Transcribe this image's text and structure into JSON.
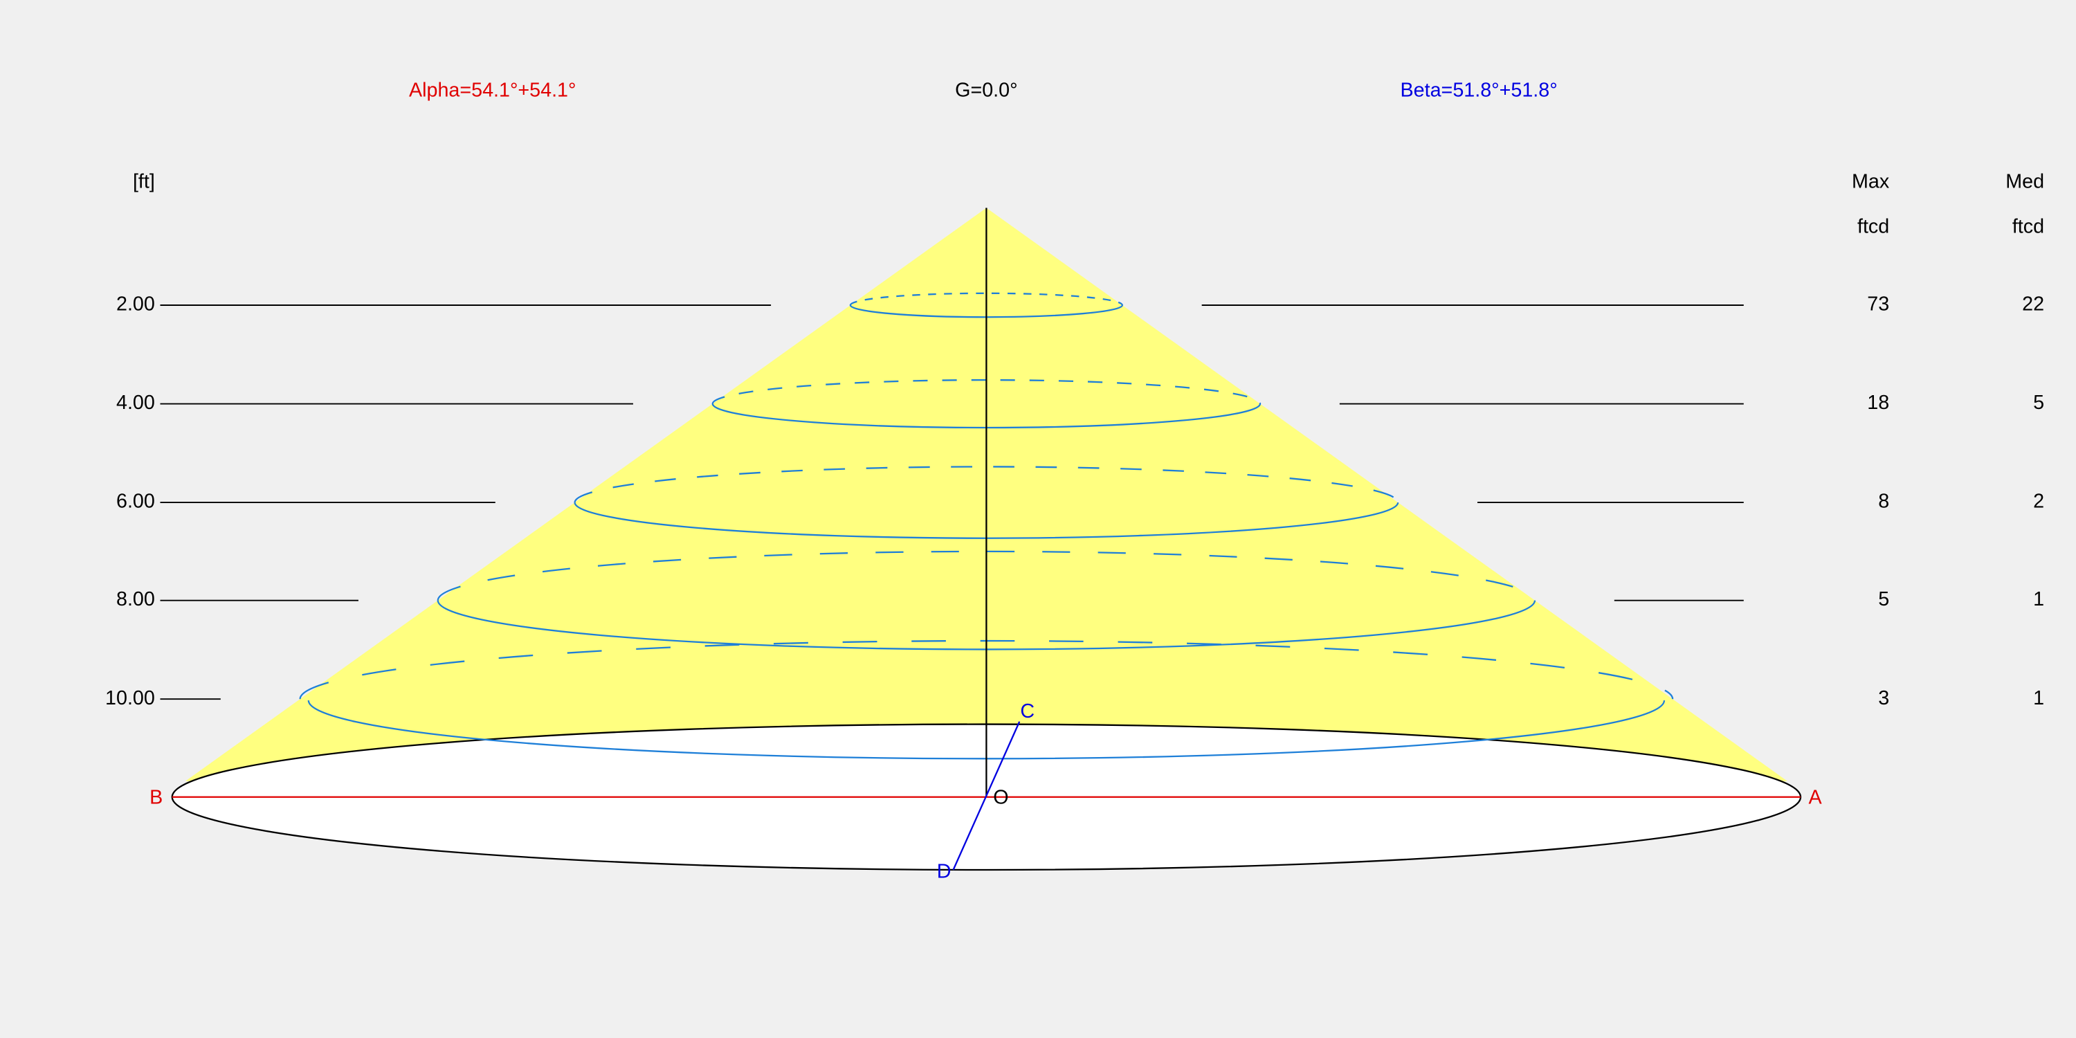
{
  "header": {
    "alpha": "Alpha=54.1°+54.1°",
    "gamma": "G=0.0°",
    "beta": "Beta=51.8°+51.8°"
  },
  "columns": {
    "unit": "[ft]",
    "max": "Max",
    "max_unit": "ftcd",
    "med": "Med",
    "med_unit": "ftcd"
  },
  "rows": [
    {
      "height": "2.00",
      "max": "73",
      "med": "22"
    },
    {
      "height": "4.00",
      "max": "18",
      "med": "5"
    },
    {
      "height": "6.00",
      "max": "8",
      "med": "2"
    },
    {
      "height": "8.00",
      "max": "5",
      "med": "1"
    },
    {
      "height": "10.00",
      "max": "3",
      "med": "1"
    }
  ],
  "points": {
    "a": "A",
    "b": "B",
    "c": "C",
    "d": "D",
    "o": "O"
  }
}
